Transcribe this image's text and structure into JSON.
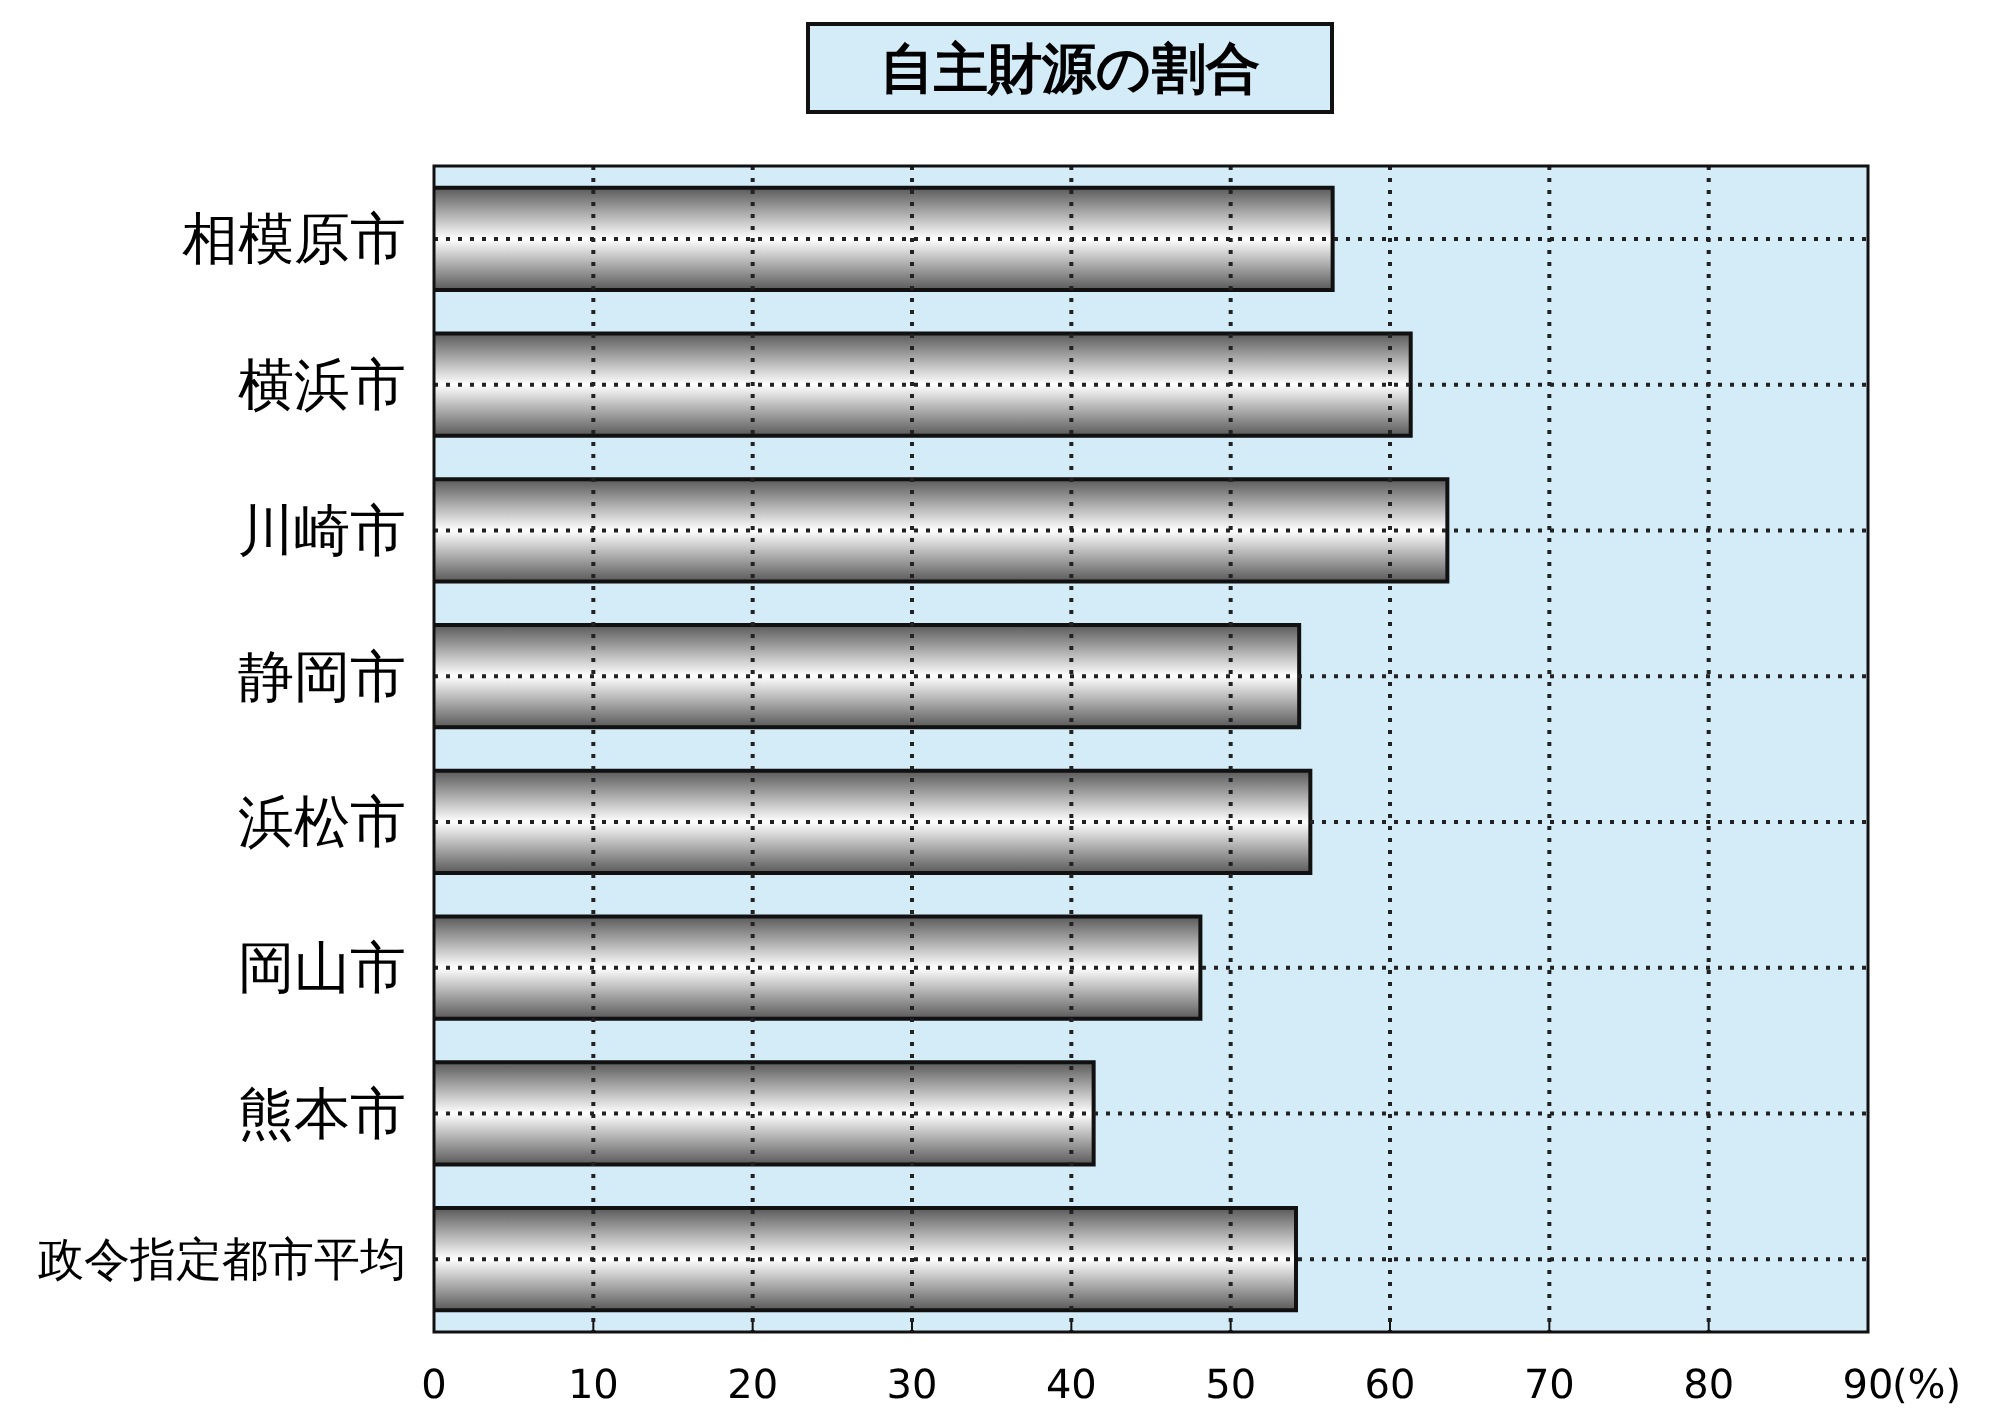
{
  "chart_data": {
    "type": "bar",
    "orientation": "horizontal",
    "title": "自主財源の割合",
    "xlabel": "(%)",
    "categories": [
      "相模原市",
      "横浜市",
      "川崎市",
      "静岡市",
      "浜松市",
      "岡山市",
      "熊本市",
      "政令指定都市平均"
    ],
    "values": [
      56.4,
      61.3,
      63.6,
      54.3,
      55.0,
      48.1,
      41.4,
      54.1
    ],
    "color": "#a0a0a0",
    "xlim": [
      0,
      90
    ],
    "xticks": [
      0,
      10,
      20,
      30,
      40,
      50,
      60,
      70,
      80,
      90
    ],
    "grid": true
  }
}
